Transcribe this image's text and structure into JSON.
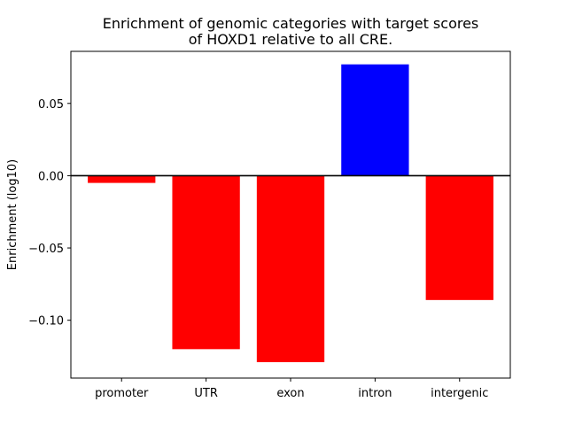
{
  "chart_data": {
    "type": "bar",
    "title_lines": [
      "Enrichment of genomic categories with target scores",
      "of HOXD1 relative to all CRE."
    ],
    "xlabel": "",
    "ylabel": "Enrichment (log10)",
    "categories": [
      "promoter",
      "UTR",
      "exon",
      "intron",
      "intergenic"
    ],
    "values": [
      -0.005,
      -0.12,
      -0.129,
      0.077,
      -0.086
    ],
    "ylim": [
      -0.14,
      0.086
    ],
    "yticks": [
      0.05,
      0.0,
      -0.05,
      -0.1
    ],
    "ytick_labels": [
      "0.05",
      "0.00",
      "−0.05",
      "−0.10"
    ],
    "grid": false,
    "legend": "none",
    "zero_line": true,
    "colors": {
      "positive": "#0000ff",
      "negative": "#ff0000",
      "axis": "#000000"
    }
  }
}
